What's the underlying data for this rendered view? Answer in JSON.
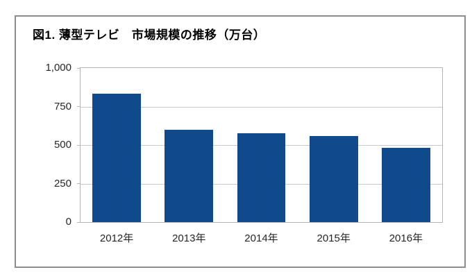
{
  "figure": {
    "title": "図1. 薄型テレビ　市場規模の推移（万台）"
  },
  "chart_data": {
    "type": "bar",
    "title": "図1. 薄型テレビ　市場規模の推移（万台）",
    "categories": [
      "2012年",
      "2013年",
      "2014年",
      "2015年",
      "2016年"
    ],
    "values": [
      835,
      600,
      575,
      560,
      480
    ],
    "unit": "万台",
    "xlabel": "",
    "ylabel": "",
    "ylim": [
      0,
      1000
    ],
    "yticks": [
      0,
      250,
      500,
      750,
      1000
    ],
    "ytick_labels": [
      "0",
      "250",
      "500",
      "750",
      "1,000"
    ],
    "grid": true,
    "legend": false,
    "bar_color": "#114A8C"
  },
  "colors": {
    "bar": "#114A8C",
    "frame_border": "#8C8C8C",
    "plot_border": "#B3B3B3",
    "gridline": "#C9C9C9",
    "axis_text": "#262626",
    "title_text": "#000000",
    "background": "#FFFFFF"
  }
}
